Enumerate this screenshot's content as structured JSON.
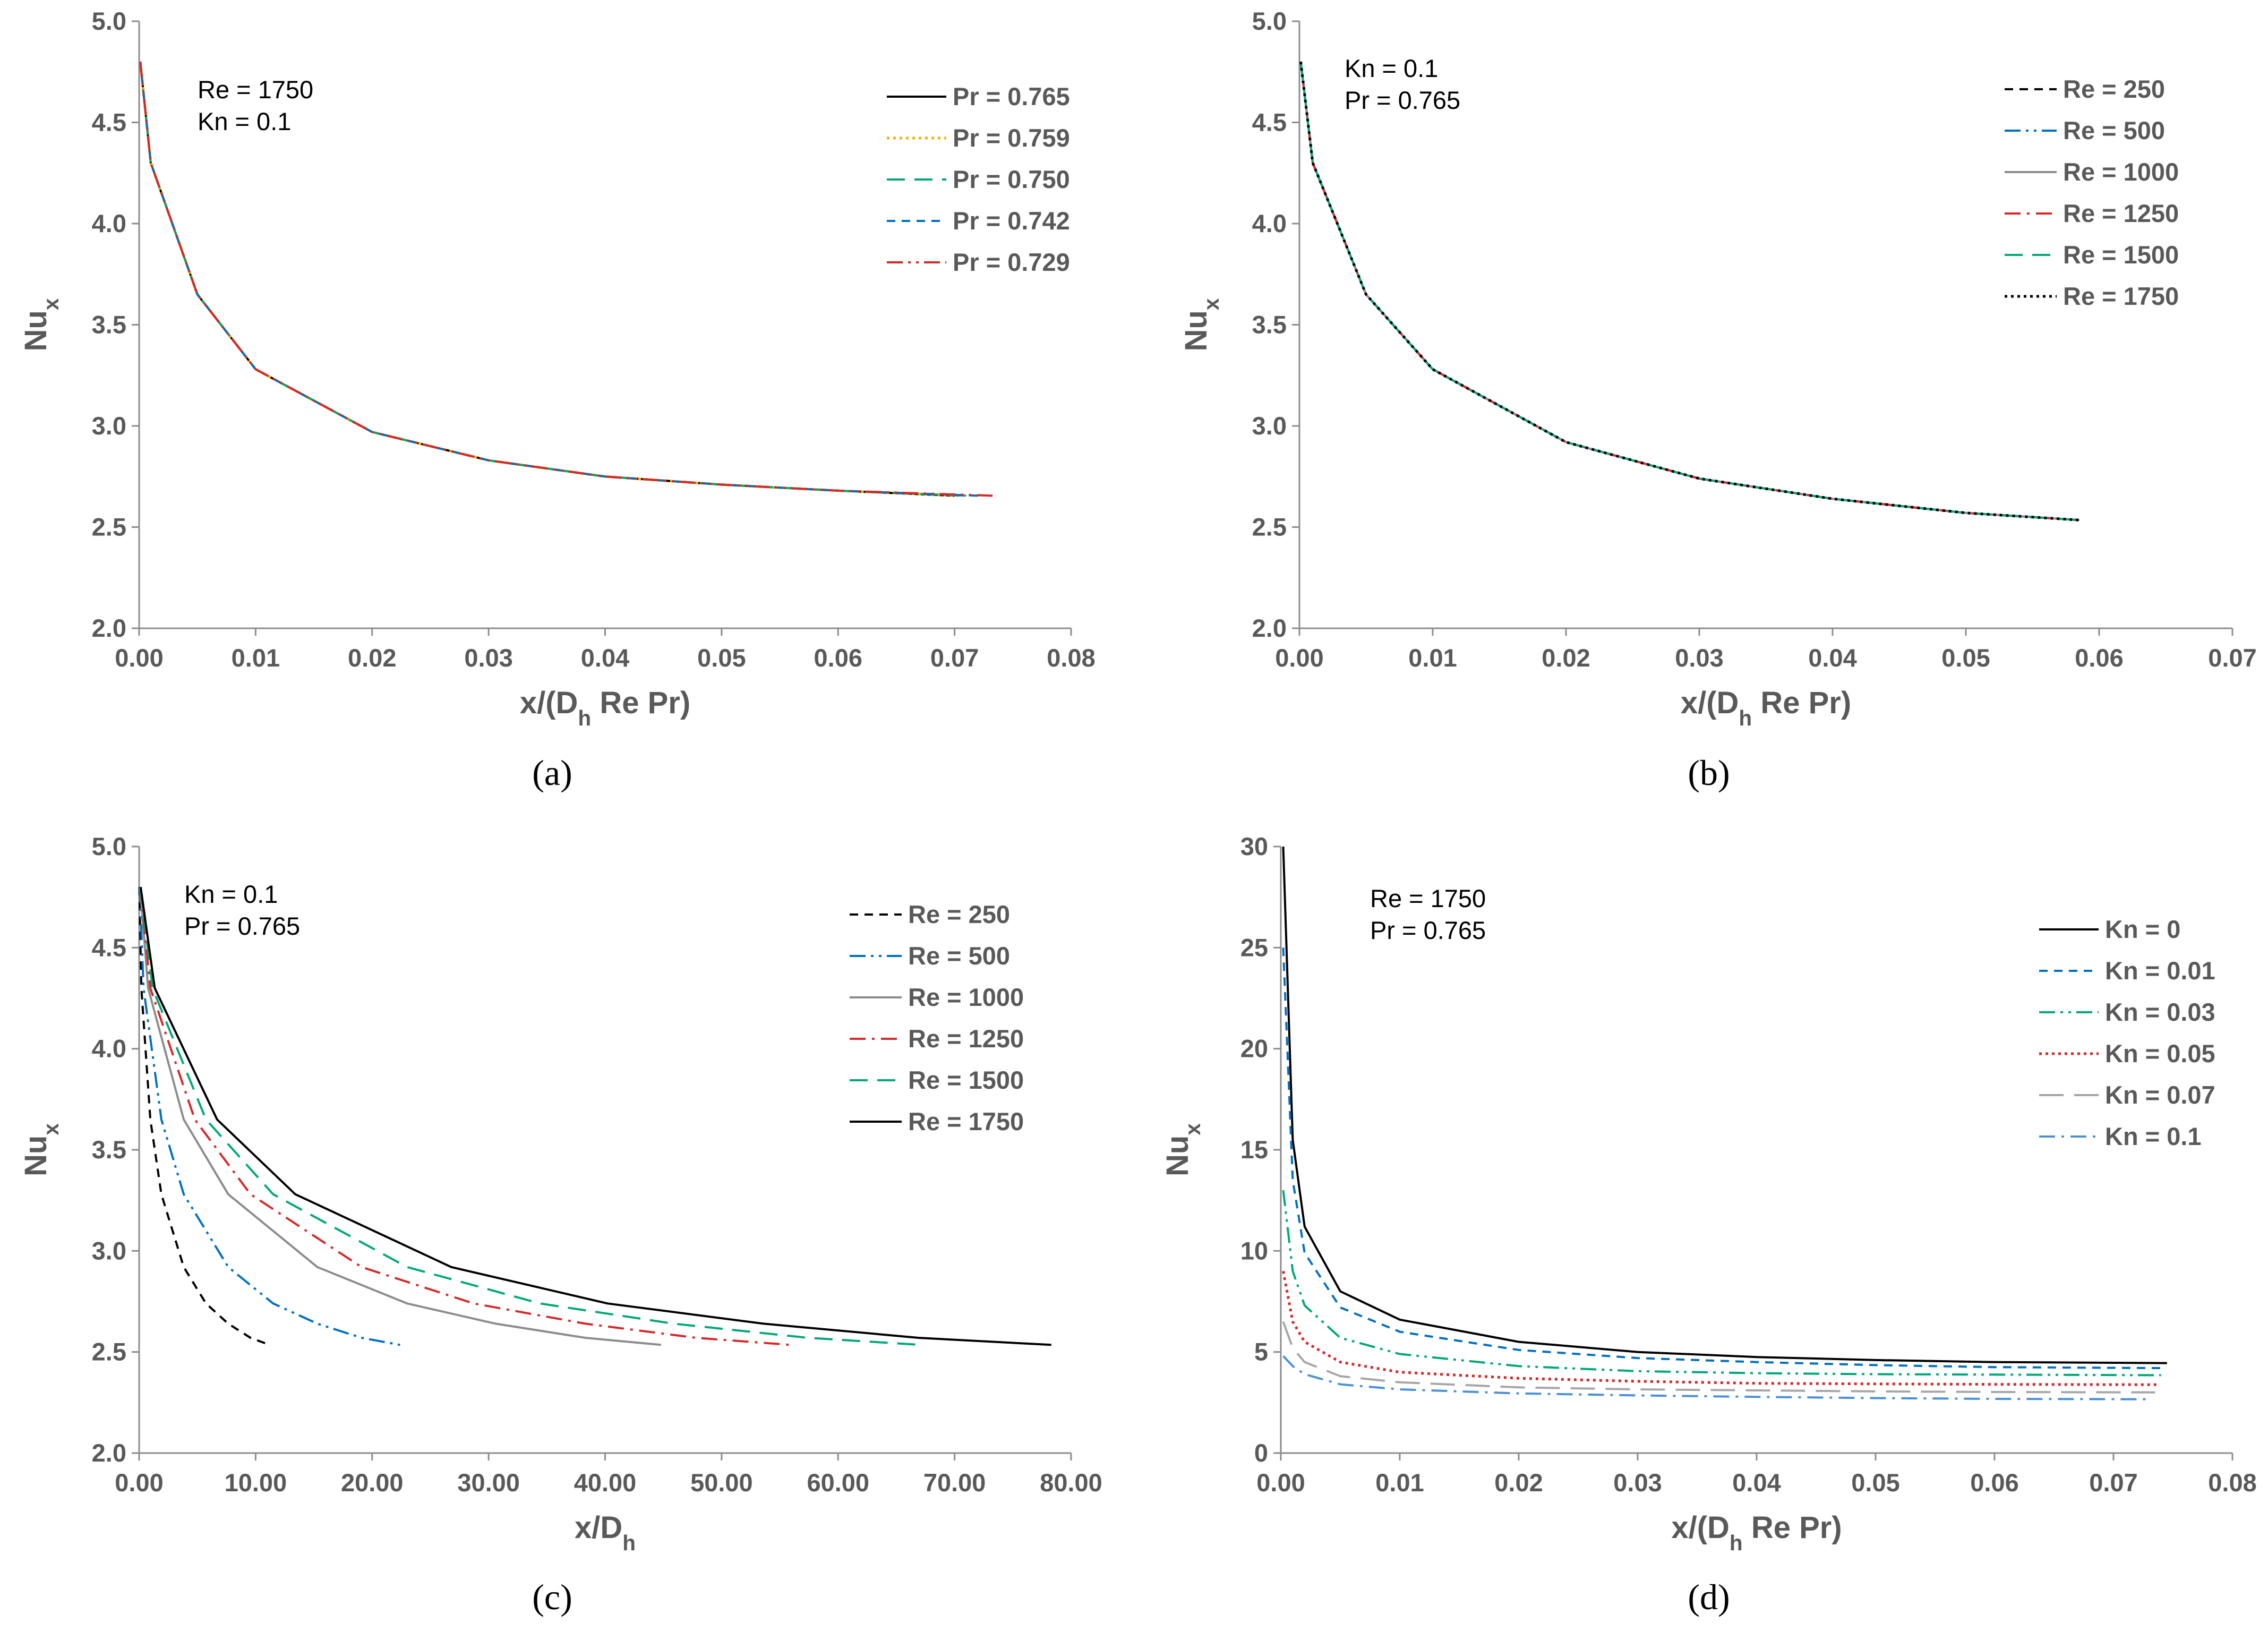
{
  "chart_data": [
    {
      "id": "a",
      "type": "line",
      "caption": "(a)",
      "xlabel": "x/(D_h Re Pr)",
      "ylabel": "Nu_x",
      "xlim": [
        0,
        0.08
      ],
      "ylim": [
        2.0,
        5.0
      ],
      "xticks": [
        "0.00",
        "0.01",
        "0.02",
        "0.03",
        "0.04",
        "0.05",
        "0.06",
        "0.07",
        "0.08"
      ],
      "yticks": [
        "2.0",
        "2.5",
        "3.0",
        "3.5",
        "4.0",
        "4.5",
        "5.0"
      ],
      "annotations": [
        "Re = 1750",
        "Kn = 0.1"
      ],
      "legend_position": "top-right",
      "series": [
        {
          "name": "Pr = 0.765",
          "color": "#000000",
          "style": "solid",
          "x": [
            0.0001,
            0.001,
            0.005,
            0.01,
            0.02,
            0.03,
            0.04,
            0.05,
            0.06,
            0.07
          ],
          "values": [
            4.8,
            4.3,
            3.65,
            3.28,
            2.97,
            2.83,
            2.75,
            2.71,
            2.68,
            2.655
          ]
        },
        {
          "name": "Pr = 0.759",
          "color": "#F2B600",
          "style": "dot",
          "x": [
            0.0001,
            0.001,
            0.005,
            0.01,
            0.02,
            0.03,
            0.04,
            0.05,
            0.06,
            0.0705
          ],
          "values": [
            4.8,
            4.3,
            3.65,
            3.28,
            2.97,
            2.83,
            2.75,
            2.71,
            2.68,
            2.655
          ]
        },
        {
          "name": "Pr = 0.750",
          "color": "#00A878",
          "style": "dash",
          "x": [
            0.0001,
            0.001,
            0.005,
            0.01,
            0.02,
            0.03,
            0.04,
            0.05,
            0.06,
            0.0712
          ],
          "values": [
            4.8,
            4.3,
            3.65,
            3.28,
            2.97,
            2.83,
            2.75,
            2.71,
            2.68,
            2.655
          ]
        },
        {
          "name": "Pr = 0.742",
          "color": "#0070C0",
          "style": "shortdash",
          "x": [
            0.0001,
            0.001,
            0.005,
            0.01,
            0.02,
            0.03,
            0.04,
            0.05,
            0.06,
            0.072
          ],
          "values": [
            4.8,
            4.3,
            3.65,
            3.28,
            2.97,
            2.83,
            2.75,
            2.71,
            2.68,
            2.655
          ]
        },
        {
          "name": "Pr = 0.729",
          "color": "#D62828",
          "style": "dashdotdot",
          "x": [
            0.0001,
            0.001,
            0.005,
            0.01,
            0.02,
            0.03,
            0.04,
            0.05,
            0.06,
            0.0733
          ],
          "values": [
            4.8,
            4.3,
            3.65,
            3.28,
            2.97,
            2.83,
            2.75,
            2.71,
            2.68,
            2.655
          ]
        }
      ]
    },
    {
      "id": "b",
      "type": "line",
      "caption": "(b)",
      "xlabel": "x/(D_h Re Pr)",
      "ylabel": "Nu_x",
      "xlim": [
        0,
        0.07
      ],
      "ylim": [
        2.0,
        5.0
      ],
      "xticks": [
        "0.00",
        "0.01",
        "0.02",
        "0.03",
        "0.04",
        "0.05",
        "0.06",
        "0.07"
      ],
      "yticks": [
        "2.0",
        "2.5",
        "3.0",
        "3.5",
        "4.0",
        "4.5",
        "5.0"
      ],
      "annotations": [
        "Kn = 0.1",
        "Pr = 0.765"
      ],
      "legend_position": "top-right",
      "series": [
        {
          "name": "Re = 250",
          "color": "#000000",
          "style": "shortdash",
          "x": [
            0.0001,
            0.001,
            0.005,
            0.01,
            0.02,
            0.03,
            0.04,
            0.05,
            0.0585
          ],
          "values": [
            4.8,
            4.3,
            3.65,
            3.28,
            2.92,
            2.74,
            2.64,
            2.57,
            2.535
          ]
        },
        {
          "name": "Re = 500",
          "color": "#0070C0",
          "style": "dashdotdot",
          "x": [
            0.0001,
            0.001,
            0.005,
            0.01,
            0.02,
            0.03,
            0.04,
            0.05,
            0.0585
          ],
          "values": [
            4.8,
            4.3,
            3.65,
            3.28,
            2.92,
            2.74,
            2.64,
            2.57,
            2.535
          ]
        },
        {
          "name": "Re = 1000",
          "color": "#8C8C8C",
          "style": "solid",
          "x": [
            0.0001,
            0.001,
            0.005,
            0.01,
            0.02,
            0.03,
            0.04,
            0.05,
            0.0585
          ],
          "values": [
            4.8,
            4.3,
            3.65,
            3.28,
            2.92,
            2.74,
            2.64,
            2.57,
            2.535
          ]
        },
        {
          "name": "Re = 1250",
          "color": "#D62828",
          "style": "dashdot",
          "x": [
            0.0001,
            0.001,
            0.005,
            0.01,
            0.02,
            0.03,
            0.04,
            0.05,
            0.0585
          ],
          "values": [
            4.8,
            4.3,
            3.65,
            3.28,
            2.92,
            2.74,
            2.64,
            2.57,
            2.535
          ]
        },
        {
          "name": "Re = 1500",
          "color": "#00A878",
          "style": "dash",
          "x": [
            0.0001,
            0.001,
            0.005,
            0.01,
            0.02,
            0.03,
            0.04,
            0.05,
            0.0585
          ],
          "values": [
            4.8,
            4.3,
            3.65,
            3.28,
            2.92,
            2.74,
            2.64,
            2.57,
            2.535
          ]
        },
        {
          "name": "Re = 1750",
          "color": "#000000",
          "style": "dot",
          "x": [
            0.0001,
            0.001,
            0.005,
            0.01,
            0.02,
            0.03,
            0.04,
            0.05,
            0.0585
          ],
          "values": [
            4.8,
            4.3,
            3.65,
            3.28,
            2.92,
            2.74,
            2.64,
            2.57,
            2.535
          ]
        }
      ]
    },
    {
      "id": "c",
      "type": "line",
      "caption": "(c)",
      "xlabel": "x/D_h",
      "ylabel": "Nu_x",
      "xlim": [
        0,
        80
      ],
      "ylim": [
        2.0,
        5.0
      ],
      "xticks": [
        "0.00",
        "10.00",
        "20.00",
        "30.00",
        "40.00",
        "50.00",
        "60.00",
        "70.00",
        "80.00"
      ],
      "yticks": [
        "2.0",
        "2.5",
        "3.0",
        "3.5",
        "4.0",
        "4.5",
        "5.0"
      ],
      "annotations": [
        "Kn = 0.1",
        "Pr = 0.765"
      ],
      "legend_position": "top-right",
      "series": [
        {
          "name": "Re = 250",
          "color": "#000000",
          "style": "shortdash",
          "x": [
            0.02,
            0.19,
            0.96,
            1.91,
            3.83,
            5.74,
            7.65,
            9.56,
            11.2
          ],
          "values": [
            4.8,
            4.3,
            3.65,
            3.28,
            2.92,
            2.74,
            2.64,
            2.57,
            2.535
          ]
        },
        {
          "name": "Re = 500",
          "color": "#0070C0",
          "style": "dashdotdot",
          "x": [
            0.04,
            0.38,
            1.91,
            3.83,
            7.65,
            11.5,
            15.3,
            19.1,
            22.4
          ],
          "values": [
            4.8,
            4.3,
            3.65,
            3.28,
            2.92,
            2.74,
            2.64,
            2.57,
            2.535
          ]
        },
        {
          "name": "Re = 1000",
          "color": "#8C8C8C",
          "style": "solid",
          "x": [
            0.08,
            0.77,
            3.83,
            7.65,
            15.3,
            23.0,
            30.6,
            38.3,
            44.8
          ],
          "values": [
            4.8,
            4.3,
            3.65,
            3.28,
            2.92,
            2.74,
            2.64,
            2.57,
            2.535
          ]
        },
        {
          "name": "Re = 1250",
          "color": "#D62828",
          "style": "dashdot",
          "x": [
            0.1,
            0.96,
            4.78,
            9.56,
            19.1,
            28.7,
            38.3,
            47.8,
            55.9
          ],
          "values": [
            4.8,
            4.3,
            3.65,
            3.28,
            2.92,
            2.74,
            2.64,
            2.57,
            2.535
          ]
        },
        {
          "name": "Re = 1500",
          "color": "#00A878",
          "style": "dash",
          "x": [
            0.11,
            1.15,
            5.74,
            11.5,
            23.0,
            34.4,
            45.9,
            57.4,
            67.1
          ],
          "values": [
            4.8,
            4.3,
            3.65,
            3.28,
            2.92,
            2.74,
            2.64,
            2.57,
            2.535
          ]
        },
        {
          "name": "Re = 1750",
          "color": "#000000",
          "style": "solid",
          "x": [
            0.13,
            1.34,
            6.69,
            13.4,
            26.8,
            40.2,
            53.6,
            66.9,
            78.3
          ],
          "values": [
            4.8,
            4.3,
            3.65,
            3.28,
            2.92,
            2.74,
            2.64,
            2.57,
            2.535
          ]
        }
      ]
    },
    {
      "id": "d",
      "type": "line",
      "caption": "(d)",
      "xlabel": "x/(D_h Re Pr)",
      "ylabel": "Nu_x",
      "xlim": [
        0,
        0.08
      ],
      "ylim": [
        0,
        30
      ],
      "xticks": [
        "0.00",
        "0.01",
        "0.02",
        "0.03",
        "0.04",
        "0.05",
        "0.06",
        "0.07",
        "0.08"
      ],
      "yticks": [
        "0",
        "5",
        "10",
        "15",
        "20",
        "25",
        "30"
      ],
      "annotations": [
        "Re = 1750",
        "Pr = 0.765"
      ],
      "legend_position": "top-right",
      "series": [
        {
          "name": "Kn = 0",
          "color": "#000000",
          "style": "solid",
          "x": [
            0.0002,
            0.001,
            0.002,
            0.005,
            0.01,
            0.02,
            0.03,
            0.04,
            0.05,
            0.06,
            0.0745
          ],
          "values": [
            30,
            15.5,
            11.2,
            8.0,
            6.6,
            5.5,
            5.0,
            4.75,
            4.6,
            4.5,
            4.45
          ]
        },
        {
          "name": "Kn = 0.01",
          "color": "#0070C0",
          "style": "shortdash",
          "x": [
            0.0002,
            0.001,
            0.002,
            0.005,
            0.01,
            0.02,
            0.03,
            0.04,
            0.05,
            0.06,
            0.0743
          ],
          "values": [
            25,
            13.5,
            9.9,
            7.2,
            6.0,
            5.1,
            4.7,
            4.5,
            4.35,
            4.25,
            4.2
          ]
        },
        {
          "name": "Kn = 0.03",
          "color": "#00A878",
          "style": "dashdotdot",
          "x": [
            0.0002,
            0.001,
            0.002,
            0.005,
            0.01,
            0.02,
            0.03,
            0.04,
            0.05,
            0.06,
            0.074
          ],
          "values": [
            13,
            9.0,
            7.3,
            5.7,
            4.9,
            4.3,
            4.05,
            3.95,
            3.9,
            3.88,
            3.85
          ]
        },
        {
          "name": "Kn = 0.05",
          "color": "#D62828",
          "style": "dot",
          "x": [
            0.0002,
            0.001,
            0.002,
            0.005,
            0.01,
            0.02,
            0.03,
            0.04,
            0.05,
            0.06,
            0.0737
          ],
          "values": [
            9,
            6.5,
            5.5,
            4.5,
            4.0,
            3.7,
            3.55,
            3.45,
            3.42,
            3.4,
            3.38
          ]
        },
        {
          "name": "Kn = 0.07",
          "color": "#A6A6A6",
          "style": "longdash",
          "x": [
            0.0002,
            0.001,
            0.002,
            0.005,
            0.01,
            0.02,
            0.03,
            0.04,
            0.05,
            0.06,
            0.0735
          ],
          "values": [
            6.5,
            5.2,
            4.5,
            3.8,
            3.5,
            3.25,
            3.15,
            3.1,
            3.05,
            3.02,
            3.0
          ]
        },
        {
          "name": "Kn = 0.1",
          "color": "#4A90D9",
          "style": "dashdot",
          "x": [
            0.0002,
            0.001,
            0.002,
            0.005,
            0.01,
            0.02,
            0.03,
            0.04,
            0.05,
            0.06,
            0.073
          ],
          "values": [
            4.8,
            4.3,
            3.9,
            3.4,
            3.15,
            2.95,
            2.85,
            2.78,
            2.72,
            2.68,
            2.66
          ]
        }
      ]
    }
  ]
}
